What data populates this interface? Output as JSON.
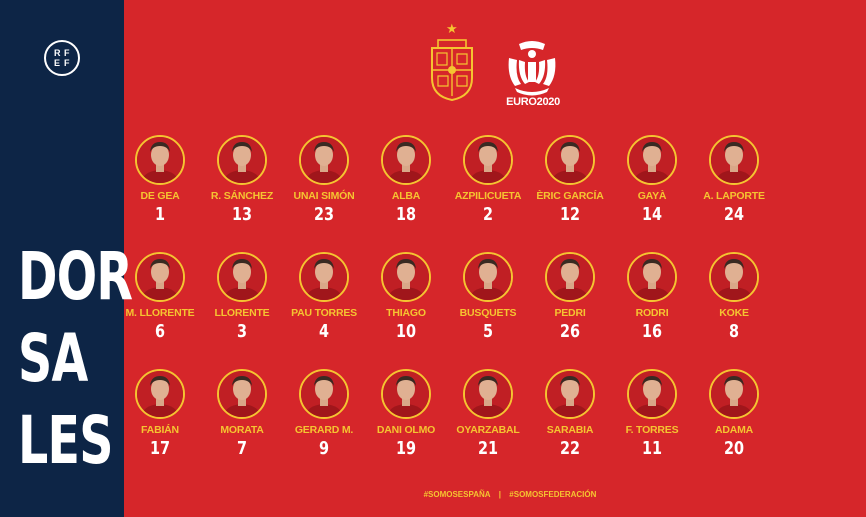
{
  "sidebar": {
    "logo_letters": [
      "R",
      "F",
      "E",
      "F"
    ],
    "title_lines": [
      "DOR",
      "SA",
      "LES"
    ]
  },
  "header": {
    "euro_logo_text": "EURO2020"
  },
  "players": [
    {
      "name": "DE GEA",
      "number": "1"
    },
    {
      "name": "R. SÁNCHEZ",
      "number": "13"
    },
    {
      "name": "UNAI SIMÓN",
      "number": "23"
    },
    {
      "name": "ALBA",
      "number": "18"
    },
    {
      "name": "AZPILICUETA",
      "number": "2"
    },
    {
      "name": "ÈRIC GARCÍA",
      "number": "12"
    },
    {
      "name": "GAYÀ",
      "number": "14"
    },
    {
      "name": "A. LAPORTE",
      "number": "24"
    },
    {
      "name": "M. LLORENTE",
      "number": "6"
    },
    {
      "name": "LLORENTE",
      "number": "3"
    },
    {
      "name": "PAU TORRES",
      "number": "4"
    },
    {
      "name": "THIAGO",
      "number": "10"
    },
    {
      "name": "BUSQUETS",
      "number": "5"
    },
    {
      "name": "PEDRI",
      "number": "26"
    },
    {
      "name": "RODRI",
      "number": "16"
    },
    {
      "name": "KOKE",
      "number": "8"
    },
    {
      "name": "FABIÁN",
      "number": "17"
    },
    {
      "name": "MORATA",
      "number": "7"
    },
    {
      "name": "GERARD M.",
      "number": "9"
    },
    {
      "name": "DANI OLMO",
      "number": "19"
    },
    {
      "name": "OYARZABAL",
      "number": "21"
    },
    {
      "name": "SARABIA",
      "number": "22"
    },
    {
      "name": "F. TORRES",
      "number": "11"
    },
    {
      "name": "ADAMA",
      "number": "20"
    }
  ],
  "footer": {
    "hashtag_1": "#SOMOSESPAÑA",
    "separator": "|",
    "hashtag_2": "#SOMOSFEDERACIÓN"
  },
  "colors": {
    "background_red": "#d6262a",
    "sidebar_navy": "#0d2546",
    "accent_gold": "#f5c431",
    "text_white": "#ffffff"
  }
}
